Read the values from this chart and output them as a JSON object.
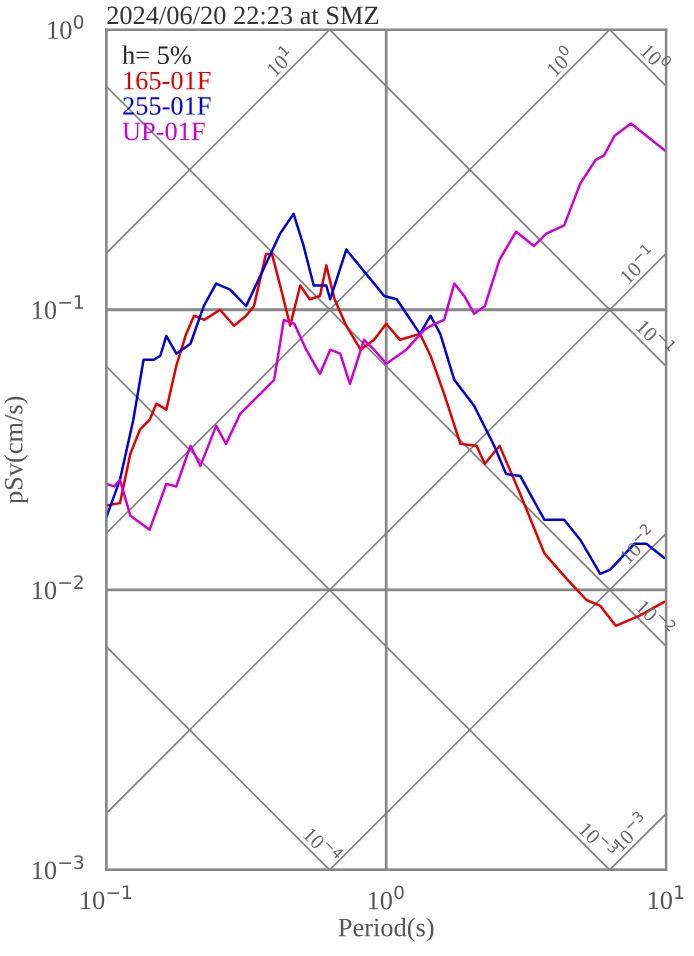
{
  "chart_data": {
    "type": "line",
    "title": "2024/06/20 22:23 at SMZ",
    "xlabel": "Period(s)",
    "ylabel": "pSv(cm/s)",
    "legend_title": "h= 5%",
    "legend": "top left",
    "log": "xy",
    "grid": true,
    "xlim": [
      0.1,
      10
    ],
    "ylim": [
      0.001,
      1
    ],
    "xticks": [
      {
        "value": 0.1,
        "label": "10$^{−1}$"
      },
      {
        "value": 1,
        "label": "10$^{0}$"
      },
      {
        "value": 10,
        "label": "10$^{1}$"
      }
    ],
    "yticks": [
      {
        "value": 0.001,
        "label": "10$^{−3}$"
      },
      {
        "value": 0.01,
        "label": "10$^{−2}$"
      },
      {
        "value": 0.1,
        "label": "10$^{−1}$"
      },
      {
        "value": 1,
        "label": "10$^{0}$"
      }
    ],
    "series": [
      {
        "color": "#808080",
        "x": [
          0.1,
          0.628
        ],
        "values": [
          0.159,
          1
        ]
      },
      {
        "color": "#808080",
        "x": [
          0.1,
          6.28
        ],
        "values": [
          0.0159,
          1
        ]
      },
      {
        "color": "#808080",
        "x": [
          0.1,
          10
        ],
        "values": [
          0.00159,
          0.159
        ]
      },
      {
        "color": "#808080",
        "x": [
          0.628,
          10
        ],
        "values": [
          0.001,
          0.0159
        ]
      },
      {
        "color": "#808080",
        "x": [
          6.28,
          10
        ],
        "values": [
          0.001,
          0.00159
        ]
      },
      {
        "color": "#808080",
        "x": [
          6.28,
          10
        ],
        "values": [
          1,
          0.628
        ]
      },
      {
        "color": "#808080",
        "x": [
          0.628,
          10
        ],
        "values": [
          1,
          0.0628
        ]
      },
      {
        "color": "#808080",
        "x": [
          0.1,
          10
        ],
        "values": [
          0.628,
          0.00628
        ]
      },
      {
        "color": "#808080",
        "x": [
          0.1,
          6.28
        ],
        "values": [
          0.0628,
          0.001
        ]
      },
      {
        "color": "#808080",
        "x": [
          0.1,
          0.628
        ],
        "values": [
          0.00628,
          0.001
        ]
      },
      {
        "name": "165-01F",
        "color": "#dd0000",
        "x": [
          0.1,
          0.112,
          0.122,
          0.132,
          0.143,
          0.151,
          0.164,
          0.178,
          0.193,
          0.206,
          0.224,
          0.255,
          0.286,
          0.316,
          0.337,
          0.372,
          0.391,
          0.418,
          0.454,
          0.493,
          0.533,
          0.58,
          0.611,
          0.654,
          0.72,
          0.81,
          0.905,
          1.0,
          1.12,
          1.32,
          1.44,
          1.61,
          1.84,
          2.1,
          2.25,
          2.54,
          3.01,
          3.67,
          4.43,
          5.19,
          5.81,
          6.6,
          8.0,
          9.84
        ],
        "values": [
          0.02,
          0.0204,
          0.0306,
          0.0373,
          0.0405,
          0.0462,
          0.044,
          0.0631,
          0.082,
          0.0952,
          0.092,
          0.1,
          0.0877,
          0.0952,
          0.103,
          0.158,
          0.158,
          0.122,
          0.0877,
          0.122,
          0.109,
          0.112,
          0.144,
          0.109,
          0.0877,
          0.072,
          0.0781,
          0.0891,
          0.0781,
          0.082,
          0.0685,
          0.0501,
          0.0332,
          0.0327,
          0.0282,
          0.0327,
          0.022,
          0.0135,
          0.0109,
          0.0092,
          0.00877,
          0.00744,
          0.00808,
          0.00906
        ]
      },
      {
        "name": "255-01F",
        "color": "#0000cc",
        "x": [
          0.1,
          0.112,
          0.125,
          0.136,
          0.148,
          0.156,
          0.164,
          0.178,
          0.2,
          0.223,
          0.247,
          0.277,
          0.316,
          0.355,
          0.418,
          0.467,
          0.507,
          0.551,
          0.611,
          0.631,
          0.72,
          0.849,
          0.984,
          1.09,
          1.32,
          1.44,
          1.56,
          1.75,
          2.06,
          2.43,
          2.68,
          3.01,
          3.67,
          4.32,
          4.93,
          5.81,
          6.31,
          7.69,
          8.49,
          9.84
        ],
        "values": [
          0.0181,
          0.0247,
          0.0405,
          0.0663,
          0.0663,
          0.0685,
          0.0807,
          0.0697,
          0.0756,
          0.103,
          0.124,
          0.118,
          0.103,
          0.132,
          0.187,
          0.22,
          0.169,
          0.122,
          0.122,
          0.109,
          0.164,
          0.134,
          0.112,
          0.109,
          0.082,
          0.0952,
          0.082,
          0.0562,
          0.0454,
          0.0327,
          0.0259,
          0.0255,
          0.0178,
          0.0178,
          0.0151,
          0.0114,
          0.0118,
          0.0146,
          0.0146,
          0.013
        ]
      },
      {
        "name": "UP-01F",
        "color": "#cc00cc",
        "x": [
          0.1,
          0.107,
          0.112,
          0.122,
          0.143,
          0.164,
          0.178,
          0.2,
          0.217,
          0.247,
          0.268,
          0.301,
          0.355,
          0.398,
          0.431,
          0.47,
          0.518,
          0.58,
          0.631,
          0.685,
          0.742,
          0.833,
          0.905,
          1.0,
          1.18,
          1.37,
          1.49,
          1.61,
          1.75,
          1.9,
          2.06,
          2.25,
          2.54,
          2.91,
          3.37,
          3.73,
          4.32,
          4.93,
          5.6,
          5.99,
          6.54,
          7.49,
          8.49,
          10
        ],
        "values": [
          0.0239,
          0.0234,
          0.0247,
          0.0184,
          0.0164,
          0.0239,
          0.0234,
          0.0327,
          0.0277,
          0.0385,
          0.0332,
          0.0425,
          0.0501,
          0.0562,
          0.092,
          0.0891,
          0.072,
          0.059,
          0.072,
          0.0697,
          0.0544,
          0.0781,
          0.072,
          0.0642,
          0.072,
          0.0849,
          0.0891,
          0.092,
          0.124,
          0.112,
          0.0968,
          0.103,
          0.151,
          0.19,
          0.169,
          0.187,
          0.2,
          0.282,
          0.343,
          0.355,
          0.418,
          0.462,
          0.418,
          0.367
        ]
      }
    ],
    "annotations": [
      {
        "text": "10$^{1}$",
        "x": 0.45,
        "y": 0.716
      },
      {
        "text": "10$^{0}$",
        "x": 4.5,
        "y": 0.716
      },
      {
        "text": "10$^{0}$",
        "x": 8.5,
        "y": 0.74
      },
      {
        "text": "10$^{−1}$",
        "x": 8.5,
        "y": 0.135
      },
      {
        "text": "10$^{−1}$",
        "x": 8.5,
        "y": 0.074
      },
      {
        "text": "10$^{−2}$",
        "x": 8.5,
        "y": 0.0135
      },
      {
        "text": "10$^{−2}$",
        "x": 8.5,
        "y": 0.0074
      },
      {
        "text": "10$^{−4}$",
        "x": 0.55,
        "y": 0.00114
      },
      {
        "text": "10$^{−3}$",
        "x": 5.3,
        "y": 0.00119
      },
      {
        "text": "10$^{−3}$",
        "x": 8.0,
        "y": 0.00127
      }
    ]
  }
}
